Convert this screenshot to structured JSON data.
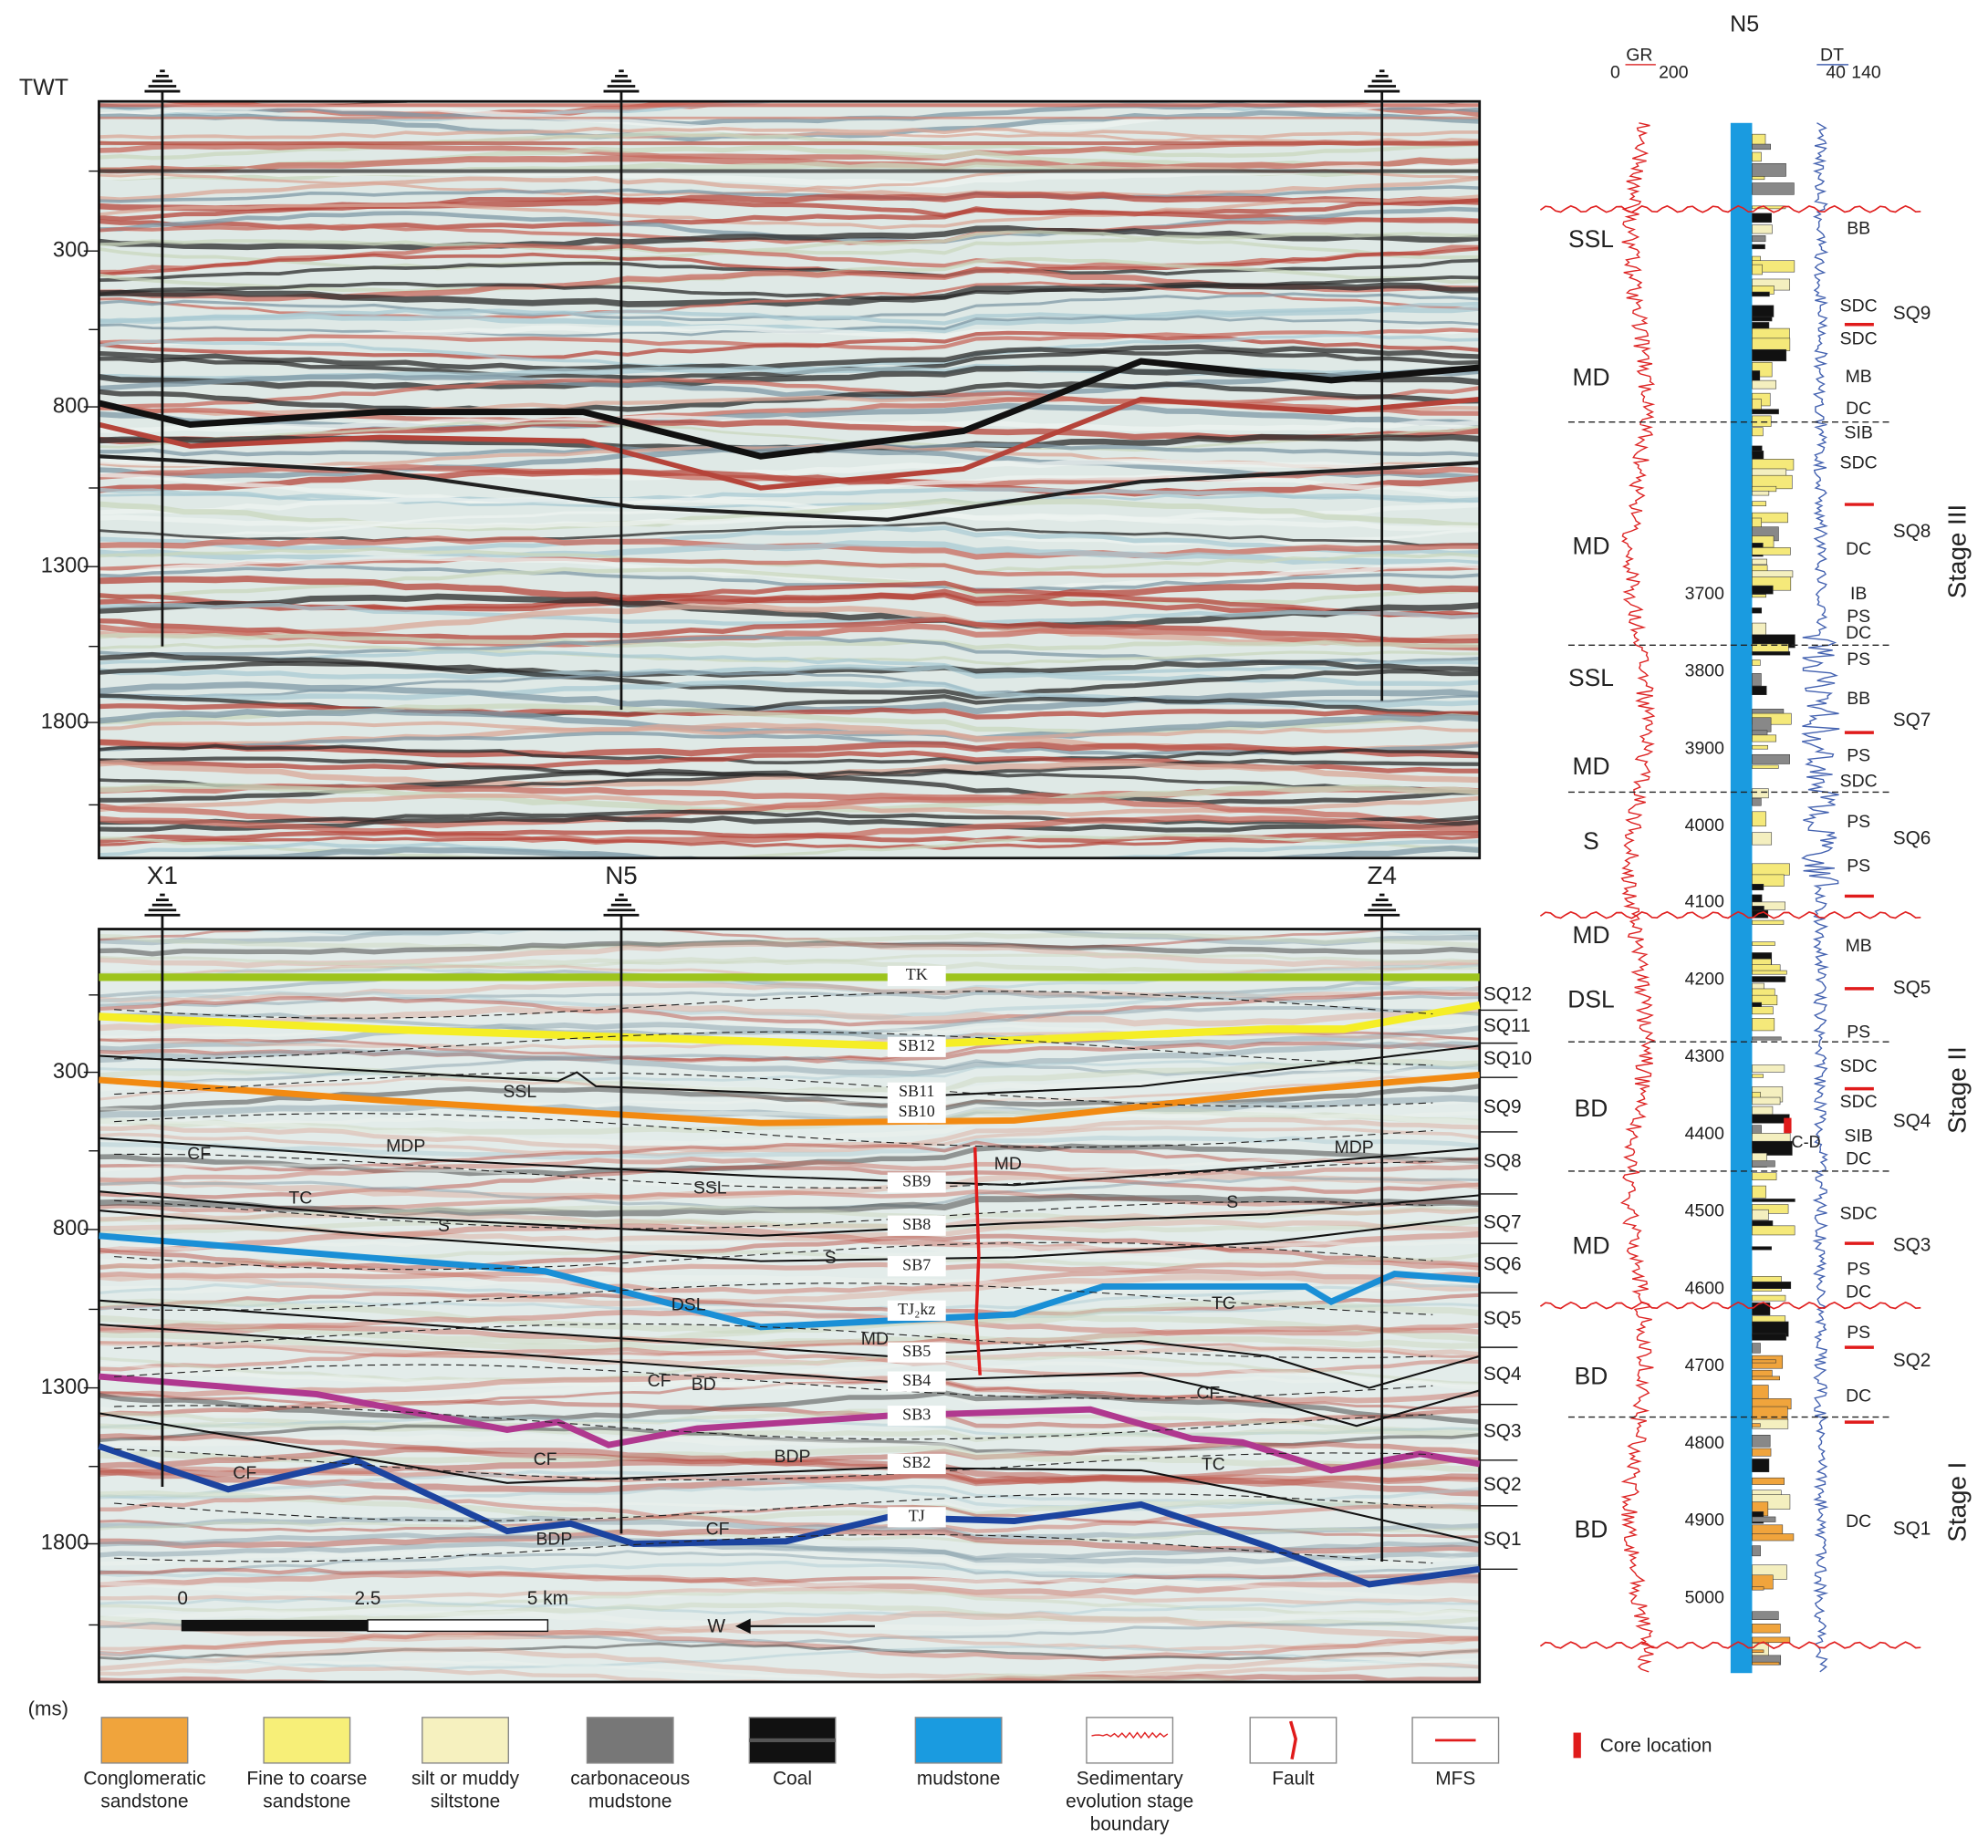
{
  "seismic": {
    "twt_label": "TWT",
    "unit": "(ms)",
    "time_ticks": [
      "300",
      "800",
      "1300",
      "1800"
    ],
    "wells": [
      "X1",
      "N5",
      "Z4"
    ],
    "horizons": [
      "TK",
      "SB12",
      "SB11",
      "SB10",
      "SB9",
      "SB8",
      "SB7",
      "TJ₂kz",
      "SB5",
      "SB4",
      "SB3",
      "SB2",
      "TJ"
    ],
    "sequences": [
      "SQ12",
      "SQ11",
      "SQ10",
      "SQ9",
      "SQ8",
      "SQ7",
      "SQ6",
      "SQ5",
      "SQ4",
      "SQ3",
      "SQ2",
      "SQ1"
    ],
    "facies": [
      "SSL",
      "CF",
      "MDP",
      "TC",
      "SSL",
      "S",
      "S",
      "DSL",
      "CF",
      "BD",
      "CF",
      "BDP",
      "CF",
      "BDP",
      "CF",
      "MD",
      "MDP",
      "S",
      "TC",
      "CF",
      "TC",
      "MD"
    ],
    "scale_bar": [
      "0",
      "2.5",
      "5 km"
    ],
    "direction": "W"
  },
  "log": {
    "well": "N5",
    "gr": {
      "name": "GR",
      "min": "0",
      "max": "200"
    },
    "dt": {
      "name": "DT",
      "min": "40",
      "max": "140"
    },
    "facies": [
      "SSL",
      "MD",
      "MD",
      "SSL",
      "MD",
      "S",
      "MD",
      "DSL",
      "BD",
      "MD",
      "BD",
      "BD"
    ],
    "depths": [
      "3700",
      "3800",
      "3900",
      "4000",
      "4100",
      "4200",
      "4300",
      "4400",
      "4500",
      "4600",
      "4700",
      "4800",
      "4900",
      "5000"
    ],
    "subfacies": [
      "BB",
      "SDC",
      "SDC",
      "MB",
      "DC",
      "SIB",
      "SDC",
      "DC",
      "IB",
      "PS",
      "DC",
      "PS",
      "BB",
      "PS",
      "SDC",
      "PS",
      "PS",
      "MB",
      "PS",
      "SDC",
      "SDC",
      "SIB",
      "DC",
      "SDC",
      "PS",
      "DC",
      "PS",
      "DC",
      "DC"
    ],
    "sequences": [
      "SQ9",
      "SQ8",
      "SQ7",
      "SQ6",
      "SQ5",
      "SQ4",
      "SQ3",
      "SQ2",
      "SQ1"
    ],
    "stages": [
      "Stage III",
      "Stage II",
      "Stage I"
    ],
    "core": "C-D"
  },
  "legend": {
    "items": [
      [
        "Conglomeratic",
        "sandstone"
      ],
      [
        "Fine to coarse",
        "sandstone"
      ],
      [
        "silt or muddy",
        "siltstone"
      ],
      [
        "carbonaceous",
        "mudstone"
      ],
      [
        "Coal"
      ],
      [
        "mudstone"
      ],
      [
        "Sedimentary",
        "evolution stage",
        "boundary"
      ],
      [
        "Fault"
      ],
      [
        "MFS"
      ]
    ],
    "core_location": "Core location"
  }
}
